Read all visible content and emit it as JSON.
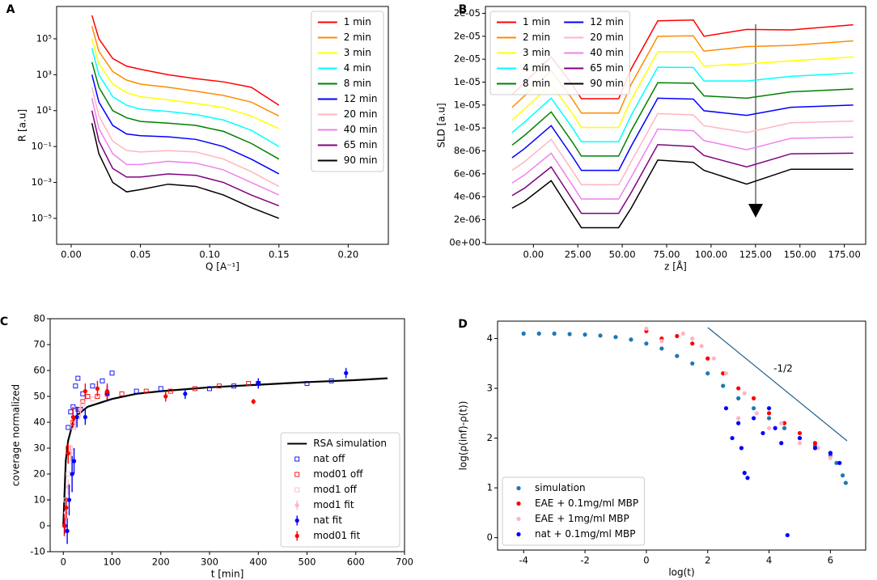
{
  "chart_data": [
    {
      "type": "line",
      "label": "A",
      "xlabel": "Q [A⁻¹]",
      "ylabel": "R [a.u]",
      "log_y": true,
      "legend": "upper right",
      "legend_columns": 1,
      "xlim": [
        -0.0105,
        0.229
      ],
      "ylim": [
        3.6e-07,
        6300000.0
      ],
      "xticks": [
        {
          "value": 0,
          "label": "0.00"
        },
        {
          "value": 0.05,
          "label": "0.05"
        },
        {
          "value": 0.1,
          "label": "0.10"
        },
        {
          "value": 0.15,
          "label": "0.15"
        },
        {
          "value": 0.2,
          "label": "0.20"
        }
      ],
      "yticks": [
        {
          "value": 1e-05,
          "label": "10⁻⁵"
        },
        {
          "value": 0.001,
          "label": "10⁻³"
        },
        {
          "value": 0.1,
          "label": "10⁻¹"
        },
        {
          "value": 10,
          "label": "10¹"
        },
        {
          "value": 1000,
          "label": "10³"
        },
        {
          "value": 100000,
          "label": "10⁵"
        }
      ],
      "x": [
        0.015,
        0.02,
        0.03,
        0.04,
        0.05,
        0.07,
        0.09,
        0.11,
        0.13,
        0.15
      ],
      "series": [
        {
          "name": "1 min",
          "color": "#ff0000",
          "values": [
            2000000,
            100000,
            8000,
            3000,
            2000,
            1000,
            600,
            400,
            200,
            20
          ]
        },
        {
          "name": "2 min",
          "color": "#ff8c00",
          "values": [
            500000,
            20000,
            1500,
            500,
            300,
            200,
            120,
            70,
            30,
            5
          ]
        },
        {
          "name": "3 min",
          "color": "#ffff00",
          "values": [
            100000,
            4000,
            300,
            100,
            60,
            40,
            25,
            15,
            5,
            1
          ]
        },
        {
          "name": "4 min",
          "color": "#00ffff",
          "values": [
            30000,
            1000,
            60,
            20,
            12,
            9,
            6,
            3,
            0.8,
            0.1
          ]
        },
        {
          "name": "8 min",
          "color": "#008000",
          "values": [
            5000,
            200,
            10,
            4,
            2.5,
            2,
            1.5,
            0.7,
            0.15,
            0.02
          ]
        },
        {
          "name": "12 min",
          "color": "#0000ff",
          "values": [
            1000,
            30,
            1.5,
            0.5,
            0.4,
            0.35,
            0.25,
            0.1,
            0.02,
            0.003
          ]
        },
        {
          "name": "20 min",
          "color": "#ffb6c1",
          "values": [
            200,
            5,
            0.2,
            0.06,
            0.05,
            0.06,
            0.05,
            0.02,
            0.004,
            0.0006
          ]
        },
        {
          "name": "40 min",
          "color": "#ee82ee",
          "values": [
            50,
            1,
            0.04,
            0.01,
            0.01,
            0.015,
            0.012,
            0.005,
            0.001,
            0.0002
          ]
        },
        {
          "name": "65 min",
          "color": "#800080",
          "values": [
            10,
            0.2,
            0.006,
            0.002,
            0.002,
            0.003,
            0.0025,
            0.001,
            0.0002,
            5e-05
          ]
        },
        {
          "name": "90 min",
          "color": "#000000",
          "values": [
            2,
            0.04,
            0.001,
            0.0003,
            0.0004,
            0.0008,
            0.0006,
            0.0002,
            4e-05,
            1e-05
          ]
        }
      ]
    },
    {
      "type": "line",
      "label": "B",
      "xlabel": "z [Å]",
      "ylabel": "SLD [a.u]",
      "legend": "upper left",
      "legend_columns": 2,
      "xlim": [
        -27,
        187
      ],
      "ylim": [
        -1.5e-07,
        2.06e-05
      ],
      "xticks": [
        {
          "value": 0,
          "label": "0.00"
        },
        {
          "value": 25,
          "label": "25.00"
        },
        {
          "value": 50,
          "label": "50.00"
        },
        {
          "value": 75,
          "label": "75.00"
        },
        {
          "value": 100,
          "label": "100.00"
        },
        {
          "value": 125,
          "label": "125.00"
        },
        {
          "value": 150,
          "label": "150.00"
        },
        {
          "value": 175,
          "label": "175.00"
        }
      ],
      "yticks": [
        {
          "value": 0,
          "label": "0e+00"
        },
        {
          "value": 2e-06,
          "label": "2e-06"
        },
        {
          "value": 4e-06,
          "label": "4e-06"
        },
        {
          "value": 6e-06,
          "label": "6e-06"
        },
        {
          "value": 8e-06,
          "label": "8e-06"
        },
        {
          "value": 1e-05,
          "label": "1e-05"
        },
        {
          "value": 1.2e-05,
          "label": "1e-05"
        },
        {
          "value": 1.4e-05,
          "label": "1e-05"
        },
        {
          "value": 1.6e-05,
          "label": "2e-05"
        },
        {
          "value": 1.8e-05,
          "label": "2e-05"
        },
        {
          "value": 2e-05,
          "label": "2e-05"
        }
      ],
      "x": [
        -12,
        -5,
        10,
        22,
        27,
        48,
        55,
        70,
        90,
        96,
        120,
        145,
        180
      ],
      "series": [
        {
          "name": "1 min",
          "color": "#ff0000",
          "values": [
            1.29e-05,
            1.395e-05,
            1.62e-05,
            1.375e-05,
            1.255e-05,
            1.255e-05,
            1.515e-05,
            1.935e-05,
            1.942e-05,
            1.8e-05,
            1.86e-05,
            1.855e-05,
            1.9e-05
          ]
        },
        {
          "name": "2 min",
          "color": "#ff8c00",
          "values": [
            1.18e-05,
            1.28e-05,
            1.5e-05,
            1.25e-05,
            1.13e-05,
            1.13e-05,
            1.38e-05,
            1.8e-05,
            1.804e-05,
            1.67e-05,
            1.71e-05,
            1.72e-05,
            1.76e-05
          ]
        },
        {
          "name": "3 min",
          "color": "#ffff00",
          "values": [
            1.07e-05,
            1.165e-05,
            1.38e-05,
            1.125e-05,
            1.005e-05,
            1.005e-05,
            1.245e-05,
            1.665e-05,
            1.666e-05,
            1.54e-05,
            1.56e-05,
            1.585e-05,
            1.62e-05
          ]
        },
        {
          "name": "4 min",
          "color": "#00ffff",
          "values": [
            9.6e-06,
            1.05e-05,
            1.26e-05,
            1e-05,
            8.8e-06,
            8.8e-06,
            1.11e-05,
            1.53e-05,
            1.528e-05,
            1.41e-05,
            1.41e-05,
            1.45e-05,
            1.48e-05
          ]
        },
        {
          "name": "8 min",
          "color": "#008000",
          "values": [
            8.5e-06,
            9.35e-06,
            1.14e-05,
            8.75e-06,
            7.55e-06,
            7.55e-06,
            9.75e-06,
            1.395e-05,
            1.39e-05,
            1.28e-05,
            1.26e-05,
            1.315e-05,
            1.34e-05
          ]
        },
        {
          "name": "12 min",
          "color": "#0000ff",
          "values": [
            7.4e-06,
            8.2e-06,
            1.02e-05,
            7.5e-06,
            6.3e-06,
            6.3e-06,
            8.4e-06,
            1.26e-05,
            1.252e-05,
            1.15e-05,
            1.11e-05,
            1.18e-05,
            1.2e-05
          ]
        },
        {
          "name": "20 min",
          "color": "#ffb6c1",
          "values": [
            6.3e-06,
            7.05e-06,
            9e-06,
            6.25e-06,
            5.05e-06,
            5.05e-06,
            7.05e-06,
            1.125e-05,
            1.114e-05,
            1.02e-05,
            9.6e-06,
            1.045e-05,
            1.06e-05
          ]
        },
        {
          "name": "40 min",
          "color": "#ee82ee",
          "values": [
            5.2e-06,
            5.9e-06,
            7.8e-06,
            5e-06,
            3.8e-06,
            3.8e-06,
            5.7e-06,
            9.9e-06,
            9.76e-06,
            8.9e-06,
            8.1e-06,
            9.1e-06,
            9.2e-06
          ]
        },
        {
          "name": "65 min",
          "color": "#800080",
          "values": [
            4.1e-06,
            4.75e-06,
            6.6e-06,
            3.75e-06,
            2.55e-06,
            2.55e-06,
            4.35e-06,
            8.55e-06,
            8.38e-06,
            7.6e-06,
            6.6e-06,
            7.75e-06,
            7.8e-06
          ]
        },
        {
          "name": "90 min",
          "color": "#000000",
          "values": [
            3e-06,
            3.6e-06,
            5.4e-06,
            2.5e-06,
            1.3e-06,
            1.3e-06,
            3e-06,
            7.2e-06,
            7e-06,
            6.3e-06,
            5.1e-06,
            6.4e-06,
            6.4e-06
          ]
        }
      ]
    },
    {
      "type": "scatter",
      "label": "C",
      "xlabel": "t [min]",
      "ylabel": "coverage normalized",
      "legend": "lower right",
      "legend_columns": 1,
      "xlim": [
        -27,
        700
      ],
      "ylim": [
        -10,
        80
      ],
      "xticks": [
        0,
        100,
        200,
        300,
        400,
        500,
        600,
        700
      ],
      "yticks": [
        -10,
        0,
        10,
        20,
        30,
        40,
        50,
        60,
        70,
        80
      ],
      "series": [
        {
          "name": "RSA simulation",
          "color": "#000000",
          "marker": "line",
          "x": [
            0,
            5,
            10,
            20,
            30,
            50,
            100,
            150,
            200,
            300,
            400,
            500,
            600,
            665
          ],
          "values": [
            0,
            25,
            33,
            40,
            43,
            46,
            49,
            51,
            52,
            53.5,
            54.5,
            55.5,
            56.3,
            57
          ]
        },
        {
          "name": "nat off",
          "color": "#0000ff",
          "marker": "square-open",
          "x": [
            10,
            15,
            20,
            25,
            30,
            35,
            40,
            60,
            80,
            100,
            150,
            200,
            300,
            350,
            400,
            500,
            550
          ],
          "values": [
            38,
            44,
            46,
            54,
            57,
            45,
            51,
            54,
            56,
            59,
            52,
            53,
            53,
            54,
            55,
            55,
            56
          ]
        },
        {
          "name": "mod01 off",
          "color": "#ff0000",
          "marker": "square-open",
          "x": [
            10,
            20,
            30,
            40,
            50,
            70,
            90,
            120,
            170,
            220,
            270,
            320,
            380
          ],
          "values": [
            30,
            40,
            45,
            48,
            50,
            50,
            51,
            51,
            52,
            52,
            53,
            54,
            55
          ]
        },
        {
          "name": "mod1 off",
          "color": "#ffb6c1",
          "marker": "square-open",
          "x": [
            5,
            10,
            15,
            20,
            30,
            40,
            60
          ],
          "values": [
            10,
            20,
            30,
            38,
            42,
            47,
            49
          ]
        },
        {
          "name": "mod1 fit",
          "color": "#ffb6c1",
          "marker": "circle",
          "x": [
            5,
            10,
            15,
            25,
            35
          ],
          "values": [
            5,
            15,
            28,
            40,
            45
          ],
          "errors": [
            3,
            3,
            3,
            3,
            3
          ]
        },
        {
          "name": "nat fit",
          "color": "#0000ff",
          "marker": "circle",
          "x": [
            3,
            8,
            12,
            18,
            22,
            28,
            45,
            90,
            250,
            400,
            580
          ],
          "values": [
            0,
            -2,
            10,
            20,
            25,
            42,
            42,
            51,
            51,
            55,
            59
          ],
          "errors": [
            3,
            5,
            6,
            7,
            5,
            4,
            3,
            3,
            2,
            2,
            2
          ]
        },
        {
          "name": "mod01 fit",
          "color": "#ff0000",
          "marker": "circle",
          "x": [
            2,
            6,
            10,
            20,
            45,
            70,
            90,
            210,
            390
          ],
          "values": [
            0,
            7,
            28,
            42,
            52,
            53,
            52,
            50,
            48
          ],
          "errors": [
            4,
            4,
            4,
            4,
            3,
            3,
            3,
            2,
            1
          ]
        }
      ]
    },
    {
      "type": "scatter",
      "label": "D",
      "xlabel": "log(t)",
      "ylabel": "log(ρ(inf)-ρ(t))",
      "annotation": "-1/2",
      "legend": "lower left",
      "legend_columns": 1,
      "xlim": [
        -4.85,
        7.15
      ],
      "ylim": [
        -0.25,
        4.35
      ],
      "xticks": [
        -4,
        -2,
        0,
        2,
        4,
        6
      ],
      "yticks": [
        0,
        1,
        2,
        3,
        4
      ],
      "series": [
        {
          "name": "simulation",
          "color": "#1f77b4",
          "marker": "circle",
          "x": [
            -4,
            -3.5,
            -3,
            -2.5,
            -2,
            -1.5,
            -1,
            -0.5,
            0,
            0.5,
            1,
            1.5,
            2,
            2.5,
            3,
            3.5,
            4,
            4.5,
            5,
            5.5,
            6,
            6.2,
            6.4,
            6.5
          ],
          "values": [
            4.1,
            4.1,
            4.1,
            4.09,
            4.08,
            4.06,
            4.03,
            3.98,
            3.9,
            3.8,
            3.65,
            3.5,
            3.3,
            3.05,
            2.8,
            2.6,
            2.4,
            2.2,
            2.0,
            1.85,
            1.65,
            1.5,
            1.25,
            1.1
          ]
        },
        {
          "name": "EAE + 0.1mg/ml MBP",
          "color": "#ff0000",
          "marker": "circle",
          "x": [
            0,
            0.5,
            1,
            1.5,
            2,
            2.5,
            3,
            3.5,
            4,
            4.5,
            5,
            5.5,
            6
          ],
          "values": [
            4.15,
            4.0,
            4.05,
            3.9,
            3.6,
            3.3,
            3.0,
            2.8,
            2.5,
            2.3,
            2.1,
            1.9,
            1.7
          ]
        },
        {
          "name": "EAE + 1mg/ml MBP",
          "color": "#ffb6c1",
          "marker": "circle",
          "x": [
            0,
            0.5,
            1.2,
            1.5,
            1.8,
            2.2,
            2.6,
            3,
            3.2,
            3.6,
            4,
            4.4,
            5,
            5.6,
            6
          ],
          "values": [
            4.2,
            3.95,
            4.1,
            4.0,
            3.85,
            3.6,
            3.3,
            2.4,
            2.9,
            2.5,
            2.2,
            2.3,
            1.9,
            1.8,
            1.6
          ]
        },
        {
          "name": "nat + 0.1mg/ml MBP",
          "color": "#0000ff",
          "marker": "circle",
          "x": [
            2.6,
            2.8,
            3,
            3.1,
            3.2,
            3.3,
            3.5,
            3.8,
            4,
            4.2,
            4.4,
            4.6,
            5,
            5.5,
            6,
            6.3
          ],
          "values": [
            2.6,
            2.0,
            2.3,
            1.8,
            1.3,
            1.2,
            2.4,
            2.1,
            2.6,
            2.2,
            1.9,
            0.05,
            2.0,
            1.8,
            1.7,
            1.5
          ]
        }
      ]
    }
  ]
}
